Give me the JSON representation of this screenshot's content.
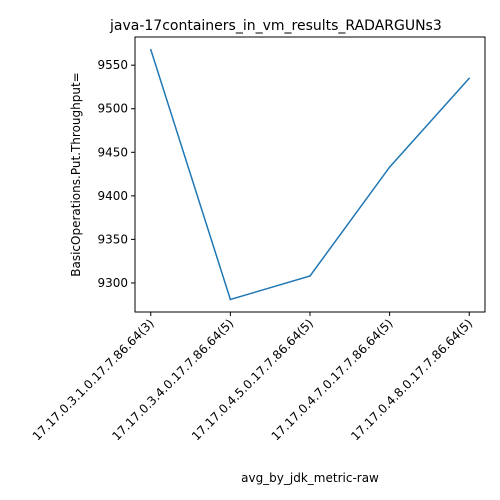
{
  "chart_data": {
    "type": "line",
    "title": "java-17containers_in_vm_results_RADARGUNs3",
    "xlabel": "avg_by_jdk_metric-raw",
    "ylabel": "BasicOperations.Put.Throughput=",
    "categories": [
      "17.17.0.3.1.0.17.7.86.64(3)",
      "17.17.0.3.4.0.17.7.86.64(5)",
      "17.17.0.4.5.0.17.7.86.64(5)",
      "17.17.0.4.7.0.17.7.86.64(5)",
      "17.17.0.4.8.0.17.7.86.64(5)"
    ],
    "series": [
      {
        "values": [
          9568,
          9281,
          9308,
          9433,
          9535
        ],
        "color": "#1f77b4"
      }
    ],
    "yticks": [
      9300,
      9350,
      9400,
      9450,
      9500,
      9550
    ],
    "ylim": [
      9266.65,
      9582.35
    ],
    "grid": false,
    "legend": "none"
  }
}
